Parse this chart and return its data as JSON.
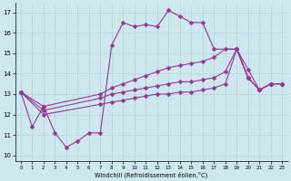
{
  "xlabel": "Windchill (Refroidissement éolien,°C)",
  "bg": "#cce8ec",
  "grid_color": "#aaccdd",
  "lc": "#993399",
  "lw": 0.8,
  "ms": 2.5,
  "curve1_x": [
    0,
    1,
    2,
    3,
    4,
    5,
    6,
    7,
    8,
    9,
    10,
    11,
    12,
    13,
    14,
    15,
    16,
    17,
    19,
    20,
    21,
    22,
    23
  ],
  "curve1_y": [
    13.1,
    11.4,
    12.4,
    11.1,
    10.4,
    10.7,
    11.1,
    11.1,
    15.4,
    16.5,
    16.3,
    16.4,
    16.3,
    17.1,
    16.8,
    16.5,
    16.5,
    15.2,
    15.2,
    13.8,
    13.2,
    13.5,
    13.5
  ],
  "curve2_x": [
    0,
    2,
    7,
    8,
    9,
    10,
    11,
    12,
    13,
    14,
    15,
    16,
    17,
    18,
    19,
    20,
    21,
    22,
    23
  ],
  "curve2_y": [
    13.1,
    12.4,
    13.0,
    13.3,
    13.5,
    13.7,
    13.9,
    14.1,
    14.3,
    14.4,
    14.5,
    14.6,
    14.8,
    15.2,
    15.2,
    14.2,
    13.2,
    13.5,
    13.5
  ],
  "curve3_x": [
    0,
    2,
    7,
    8,
    9,
    10,
    11,
    12,
    13,
    14,
    15,
    16,
    17,
    18,
    19,
    20,
    21,
    22,
    23
  ],
  "curve3_y": [
    13.1,
    12.2,
    12.8,
    13.0,
    13.1,
    13.2,
    13.3,
    13.4,
    13.5,
    13.6,
    13.6,
    13.7,
    13.8,
    14.1,
    15.2,
    13.8,
    13.2,
    13.5,
    13.5
  ],
  "curve4_x": [
    0,
    2,
    7,
    8,
    9,
    10,
    11,
    12,
    13,
    14,
    15,
    16,
    17,
    18,
    19,
    20,
    21,
    22,
    23
  ],
  "curve4_y": [
    13.1,
    12.0,
    12.5,
    12.6,
    12.7,
    12.8,
    12.9,
    13.0,
    13.0,
    13.1,
    13.1,
    13.2,
    13.3,
    13.5,
    15.2,
    13.8,
    13.2,
    13.5,
    13.5
  ],
  "yticks": [
    10,
    11,
    12,
    13,
    14,
    15,
    16,
    17
  ],
  "xticks": [
    0,
    1,
    2,
    3,
    4,
    5,
    6,
    7,
    8,
    9,
    10,
    11,
    12,
    13,
    14,
    15,
    16,
    17,
    18,
    19,
    20,
    21,
    22,
    23
  ]
}
